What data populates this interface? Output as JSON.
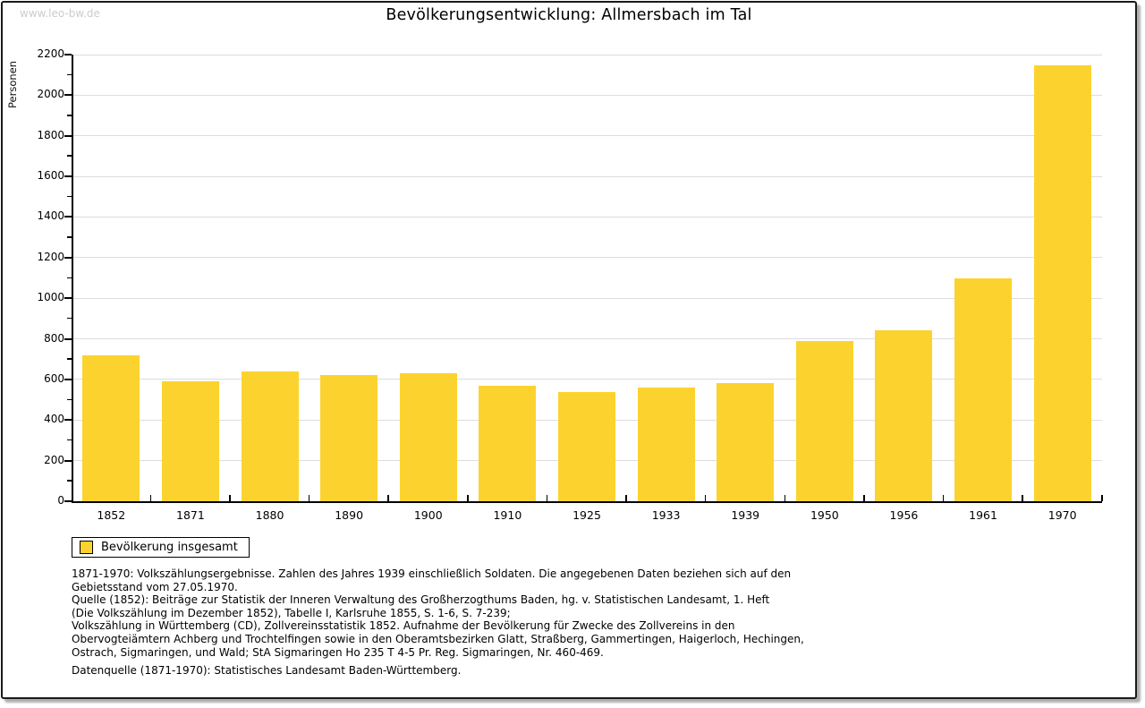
{
  "watermark": "www.leo-bw.de",
  "chart_data": {
    "type": "bar",
    "title": "Bevölkerungsentwicklung: Allmersbach im Tal",
    "ylabel": "Personen",
    "xlabel": "",
    "categories": [
      "1852",
      "1871",
      "1880",
      "1890",
      "1900",
      "1910",
      "1925",
      "1933",
      "1939",
      "1950",
      "1956",
      "1961",
      "1970"
    ],
    "values": [
      720,
      590,
      640,
      620,
      630,
      570,
      540,
      560,
      580,
      790,
      840,
      1100,
      2145
    ],
    "ylim": [
      0,
      2200
    ],
    "ytick_step": 200,
    "ytick_minor_step": 100,
    "grid": true,
    "legend_label": "Bevölkerung insgesamt",
    "legend_position": "bottom-left",
    "bar_color": "#FCD32E",
    "gridline_color": "#dddddd",
    "axis_color": "#000000"
  },
  "footnotes": {
    "lines": [
      "1871-1970: Volkszählungsergebnisse. Zahlen des Jahres 1939 einschließlich Soldaten. Die angegebenen Daten beziehen sich auf den",
      "Gebietsstand vom 27.05.1970.",
      "Quelle (1852): Beiträge zur Statistik der Inneren Verwaltung des Großherzogthums Baden, hg. v. Statistischen Landesamt, 1. Heft",
      "(Die Volkszählung im Dezember 1852), Tabelle I, Karlsruhe 1855, S. 1-6, S. 7-239;",
      "Volkszählung in Württemberg (CD), Zollvereinsstatistik 1852. Aufnahme der Bevölkerung für Zwecke des Zollvereins in den",
      "Obervogteiämtern Achberg und Trochtelfingen sowie in den Oberamtsbezirken Glatt, Straßberg, Gammertingen, Haigerloch, Hechingen,",
      "Ostrach, Sigmaringen, und Wald; StA Sigmaringen Ho 235 T 4-5 Pr. Reg. Sigmaringen, Nr. 460-469."
    ],
    "datasource": "Datenquelle (1871-1970): Statistisches Landesamt Baden-Württemberg."
  }
}
